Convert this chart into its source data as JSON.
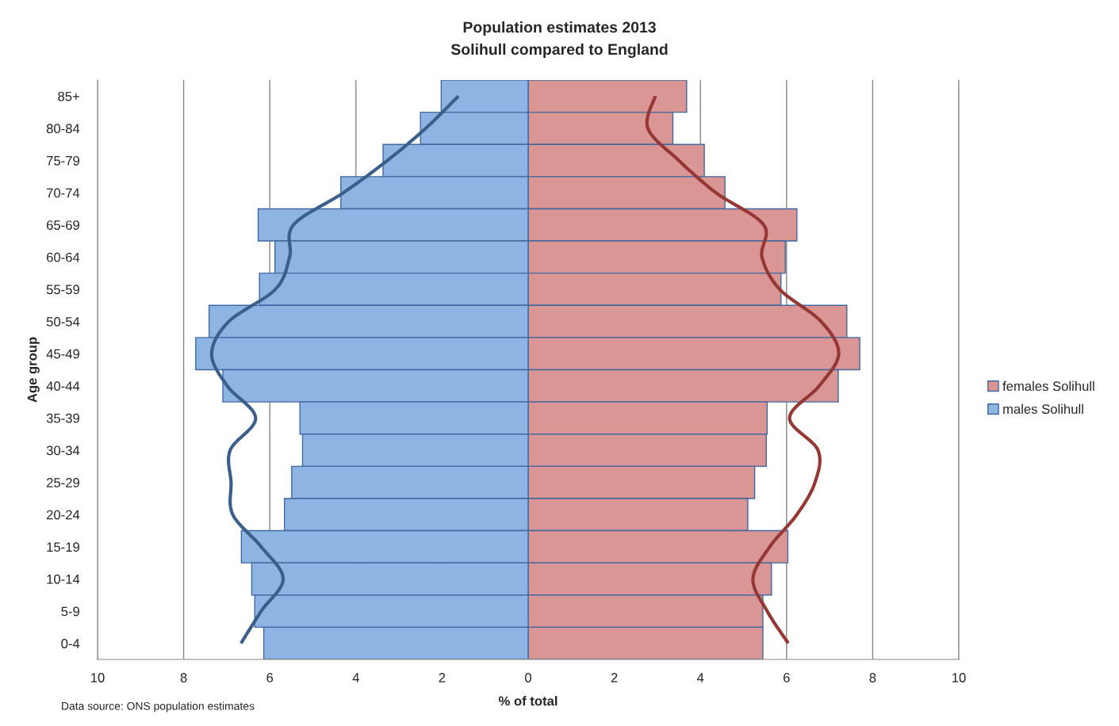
{
  "chart_data": {
    "type": "bar",
    "orientation": "horizontal",
    "stacked": true,
    "title": "Population estimates 2013",
    "subtitle": "Solihull compared to England",
    "xlabel": "% of total",
    "ylabel": "Age group",
    "annotations": [
      "Data source: ONS population estimates"
    ],
    "categories": [
      "85+",
      "80-84",
      "75-79",
      "70-74",
      "65-69",
      "60-64",
      "55-59",
      "50-54",
      "45-49",
      "40-44",
      "35-39",
      "30-34",
      "25-29",
      "20-24",
      "15-19",
      "10-14",
      "5-9",
      "0-4"
    ],
    "series": [
      {
        "name": "females Solihull",
        "color": "#d99694",
        "values": [
          3.68,
          3.36,
          4.09,
          4.57,
          6.24,
          5.97,
          5.87,
          7.4,
          7.7,
          7.2,
          5.55,
          5.53,
          5.26,
          5.1,
          6.03,
          5.65,
          5.45,
          5.45
        ]
      },
      {
        "name": "males Solihull",
        "color": "#8eb4e3",
        "values": [
          -2.02,
          -2.5,
          -3.37,
          -4.35,
          -6.27,
          -5.88,
          -6.24,
          -7.41,
          -7.72,
          -7.09,
          -5.3,
          -5.24,
          -5.49,
          -5.66,
          -6.66,
          -6.42,
          -6.35,
          -6.14
        ]
      },
      {
        "type": "line",
        "color": "#953735",
        "values": [
          2.95,
          2.78,
          3.5,
          4.36,
          5.47,
          5.43,
          5.84,
          6.8,
          7.21,
          6.76,
          6.07,
          6.73,
          6.66,
          6.24,
          5.61,
          5.22,
          5.55,
          6.04
        ]
      },
      {
        "type": "line",
        "color": "#3a5f8b",
        "values": [
          -1.62,
          -2.38,
          -3.27,
          -4.29,
          -5.45,
          -5.54,
          -5.87,
          -6.95,
          -7.35,
          -6.99,
          -6.33,
          -6.92,
          -6.9,
          -6.86,
          -6.2,
          -5.69,
          -6.2,
          -6.67
        ]
      }
    ],
    "xlim": [
      -10,
      10
    ],
    "xticks": [
      {
        "value": -10,
        "label": "10"
      },
      {
        "value": -8,
        "label": "8"
      },
      {
        "value": -6,
        "label": "6"
      },
      {
        "value": -4,
        "label": "4"
      },
      {
        "value": -2,
        "label": "2"
      },
      0,
      2,
      4,
      6,
      8,
      10
    ],
    "grid": "x",
    "legend": "right"
  }
}
